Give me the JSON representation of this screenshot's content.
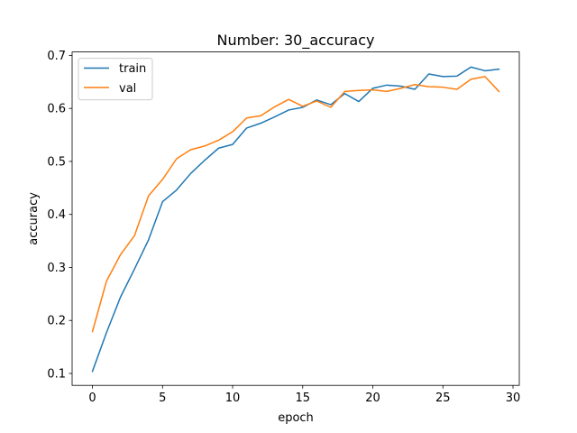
{
  "chart_data": {
    "type": "line",
    "title": "Number: 30_accuracy",
    "xlabel": "epoch",
    "ylabel": "accuracy",
    "xlim": [
      -1.45,
      30.45
    ],
    "ylim": [
      0.0775,
      0.7065
    ],
    "xticks": [
      0,
      5,
      10,
      15,
      20,
      25,
      30
    ],
    "yticks": [
      0.1,
      0.2,
      0.3,
      0.4,
      0.5,
      0.6,
      0.7
    ],
    "x": [
      0,
      1,
      2,
      3,
      4,
      5,
      6,
      7,
      8,
      9,
      10,
      11,
      12,
      13,
      14,
      15,
      16,
      17,
      18,
      19,
      20,
      21,
      22,
      23,
      24,
      25,
      26,
      27,
      28,
      29
    ],
    "series": [
      {
        "name": "train",
        "color": "#1f77b4",
        "values": [
          0.104,
          0.177,
          0.244,
          0.297,
          0.352,
          0.424,
          0.446,
          0.477,
          0.502,
          0.525,
          0.532,
          0.563,
          0.572,
          0.584,
          0.597,
          0.602,
          0.616,
          0.607,
          0.628,
          0.613,
          0.638,
          0.644,
          0.642,
          0.636,
          0.665,
          0.66,
          0.661,
          0.678,
          0.671,
          0.674
        ]
      },
      {
        "name": "val",
        "color": "#ff7f0e",
        "values": [
          0.179,
          0.274,
          0.324,
          0.36,
          0.435,
          0.466,
          0.505,
          0.522,
          0.529,
          0.54,
          0.556,
          0.582,
          0.586,
          0.603,
          0.617,
          0.604,
          0.614,
          0.602,
          0.632,
          0.634,
          0.635,
          0.632,
          0.638,
          0.645,
          0.641,
          0.64,
          0.636,
          0.655,
          0.66,
          0.632
        ]
      }
    ],
    "grid": false,
    "legend_position": "upper-left"
  }
}
